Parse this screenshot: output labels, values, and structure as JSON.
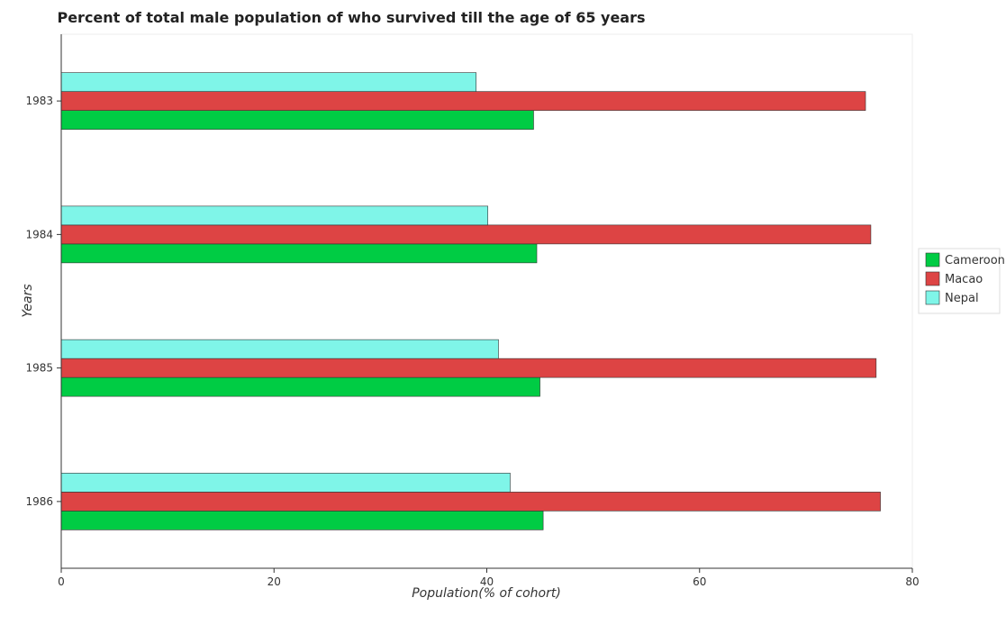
{
  "chart_data": {
    "type": "bar",
    "orientation": "horizontal",
    "title": "Percent of total male population of who survived till the age of 65 years",
    "xlabel": "Population(% of cohort)",
    "ylabel": "Years",
    "categories": [
      "1983",
      "1984",
      "1985",
      "1986"
    ],
    "xlim": [
      0,
      80
    ],
    "xticks": [
      0,
      20,
      40,
      60,
      80
    ],
    "grid": false,
    "legend_position": "right",
    "series": [
      {
        "name": "Cameroon",
        "color": "#00cc44",
        "values": [
          44.4,
          44.7,
          45.0,
          45.3
        ]
      },
      {
        "name": "Macao",
        "color": "#dd4444",
        "values": [
          75.6,
          76.1,
          76.6,
          77.0
        ]
      },
      {
        "name": "Nepal",
        "color": "#7ff5e8",
        "values": [
          39.0,
          40.1,
          41.1,
          42.2
        ]
      }
    ]
  }
}
